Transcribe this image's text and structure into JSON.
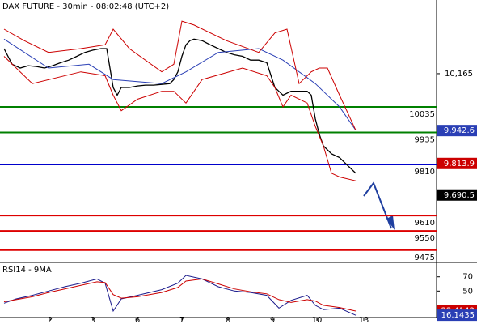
{
  "chart_data": [
    {
      "type": "line",
      "title": "DAX FUTURE - 30min - 08:02:48 (UTC+2)",
      "xlim": [
        0,
        108
      ],
      "xticks": [
        {
          "value": 12.4,
          "label": "2"
        },
        {
          "value": 23,
          "label": "3"
        },
        {
          "value": 34,
          "label": "6"
        },
        {
          "value": 45,
          "label": "7"
        },
        {
          "value": 56.4,
          "label": "8"
        },
        {
          "value": 67.4,
          "label": "9"
        },
        {
          "value": 78.4,
          "label": "10"
        },
        {
          "value": 90,
          "label": "13"
        }
      ],
      "ylim": [
        9430,
        10415
      ],
      "yticks": [
        {
          "value": 10165,
          "label": "10,165"
        }
      ],
      "series": [
        {
          "color": "#000000",
          "x": [
            1,
            3,
            5,
            7,
            9,
            11,
            13,
            15,
            17,
            19,
            21,
            23,
            25,
            26.4,
            28,
            29,
            30,
            32,
            34,
            36,
            38,
            40,
            42,
            43,
            44,
            45,
            46,
            47,
            48,
            50,
            52,
            54,
            56,
            58,
            60,
            62,
            64,
            66,
            68,
            69,
            70,
            72,
            74,
            76,
            77,
            78,
            79,
            80,
            82,
            84,
            86,
            87,
            88
          ],
          "values": [
            10263,
            10202,
            10187,
            10196,
            10193,
            10187,
            10196,
            10208,
            10218,
            10233,
            10248,
            10257,
            10263,
            10263,
            10111,
            10081,
            10111,
            10111,
            10117,
            10120,
            10120,
            10123,
            10126,
            10142,
            10172,
            10233,
            10278,
            10294,
            10300,
            10294,
            10278,
            10263,
            10248,
            10239,
            10233,
            10218,
            10218,
            10208,
            10111,
            10096,
            10081,
            10096,
            10096,
            10096,
            10081,
            9989,
            9928,
            9883,
            9852,
            9837,
            9806,
            9791,
            9776
          ]
        },
        {
          "color": "#2a3fb5",
          "x": [
            1,
            12,
            22,
            28,
            40,
            46,
            54,
            64,
            70,
            78,
            84,
            88
          ],
          "values": [
            10300,
            10187,
            10202,
            10142,
            10126,
            10172,
            10248,
            10263,
            10218,
            10126,
            10035,
            9944
          ]
        },
        {
          "color": "#cc0000",
          "x": [
            1,
            6,
            12,
            20,
            26,
            28,
            32,
            40,
            43,
            45,
            48,
            56,
            64,
            68,
            71,
            74,
            77,
            79,
            81,
            84,
            88
          ],
          "values": [
            10339,
            10294,
            10248,
            10263,
            10278,
            10339,
            10263,
            10172,
            10202,
            10370,
            10355,
            10294,
            10248,
            10324,
            10339,
            10126,
            10172,
            10187,
            10187,
            10081,
            9944
          ]
        },
        {
          "color": "#cc0000",
          "x": [
            1,
            8,
            20,
            26,
            28,
            30,
            34,
            40,
            43,
            46,
            50,
            60,
            66,
            68,
            70,
            72,
            76,
            78,
            80,
            82,
            84,
            88
          ],
          "values": [
            10233,
            10126,
            10172,
            10157,
            10081,
            10020,
            10065,
            10096,
            10096,
            10050,
            10142,
            10187,
            10157,
            10111,
            10035,
            10081,
            10050,
            9959,
            9883,
            9776,
            9761,
            9746
          ]
        }
      ],
      "levels": [
        {
          "value": 10035,
          "color": "#008000"
        },
        {
          "value": 9935,
          "color": "#008000"
        },
        {
          "value": 9810,
          "color": "#0000cc"
        },
        {
          "value": 9610,
          "color": "#dd0000"
        },
        {
          "value": 9550,
          "color": "#dd0000"
        },
        {
          "value": 9475,
          "color": "#dd0000"
        }
      ],
      "badges": [
        {
          "value": 9942.6,
          "label": "9,942.6",
          "color": "#2a3fb5"
        },
        {
          "value": 9813.9,
          "label": "9,813.9",
          "color": "#cc0000"
        },
        {
          "value": 9690.5,
          "label": "9,690.5",
          "color": "#000000"
        }
      ]
    },
    {
      "type": "line",
      "title": "RSI14 - 9MA",
      "xlim": [
        0,
        108
      ],
      "ylim": [
        14,
        89
      ],
      "yticks": [
        70,
        50
      ],
      "series": [
        {
          "color": "#1a1a8c",
          "x": [
            1,
            4,
            8,
            12,
            16,
            20,
            24,
            26,
            28,
            30,
            34,
            40,
            44,
            46,
            50,
            54,
            58,
            62,
            66,
            69,
            72,
            76,
            78,
            80,
            84,
            88
          ],
          "values": [
            33,
            39,
            44,
            50,
            56,
            61,
            67,
            61,
            22,
            39,
            44,
            52,
            61,
            72,
            67,
            56,
            50,
            48,
            44,
            26,
            37,
            44,
            30,
            24,
            26,
            16
          ]
        },
        {
          "color": "#cc0000",
          "x": [
            1,
            4,
            8,
            12,
            16,
            20,
            24,
            26,
            28,
            30,
            34,
            40,
            44,
            46,
            50,
            54,
            58,
            62,
            66,
            69,
            72,
            76,
            78,
            80,
            84,
            88
          ],
          "values": [
            35,
            38,
            42,
            48,
            53,
            58,
            63,
            62,
            45,
            40,
            42,
            48,
            55,
            64,
            67,
            60,
            53,
            49,
            46,
            38,
            34,
            38,
            36,
            30,
            27,
            22
          ]
        }
      ],
      "badges": [
        {
          "value": 22.4142,
          "label": "22.4142",
          "color": "#cc0000"
        },
        {
          "value": 16.1435,
          "label": "16.1435",
          "color": "#2a3fb5"
        }
      ]
    }
  ]
}
